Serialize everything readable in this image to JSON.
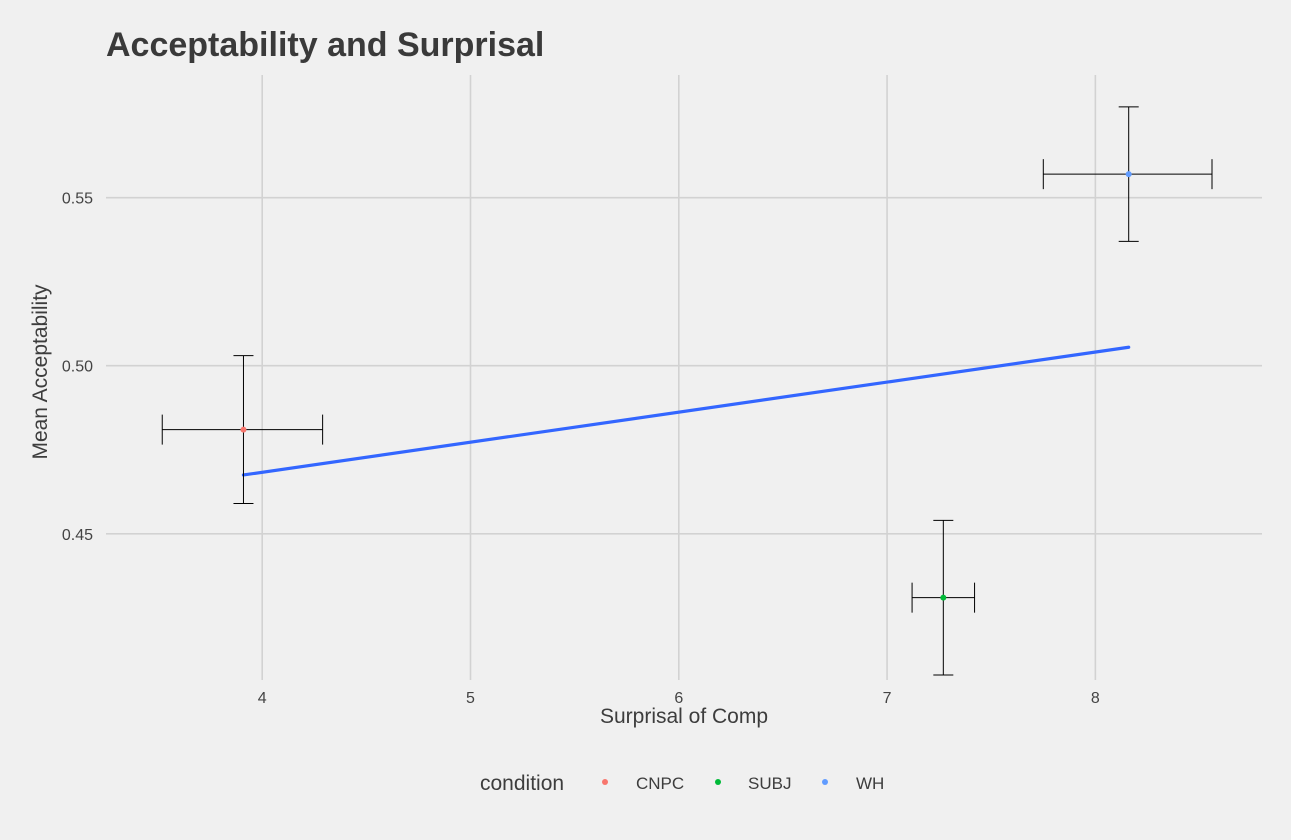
{
  "chart_data": {
    "type": "scatter",
    "title": "Acceptability and Surprisal",
    "xlabel": "Surprisal of Comp",
    "ylabel": "Mean Acceptability",
    "xlim": [
      3.25,
      8.8
    ],
    "ylim": [
      0.4065,
      0.5865
    ],
    "x_ticks": [
      4,
      5,
      6,
      7,
      8
    ],
    "x_tick_labels": [
      "4",
      "5",
      "6",
      "7",
      "8"
    ],
    "y_ticks": [
      0.45,
      0.5,
      0.55
    ],
    "y_tick_labels": [
      "0.45",
      "0.50",
      "0.55"
    ],
    "grid": true,
    "legend": {
      "title": "condition",
      "position": "bottom"
    },
    "series": [
      {
        "name": "CNPC",
        "color": "#f8766d",
        "points": [
          {
            "x": 3.91,
            "y": 0.481,
            "x_err": [
              3.52,
              4.29
            ],
            "y_err": [
              0.459,
              0.503
            ]
          }
        ]
      },
      {
        "name": "SUBJ",
        "color": "#00ba38",
        "points": [
          {
            "x": 7.27,
            "y": 0.431,
            "x_err": [
              7.12,
              7.42
            ],
            "y_err": [
              0.408,
              0.454
            ]
          }
        ]
      },
      {
        "name": "WH",
        "color": "#619cff",
        "points": [
          {
            "x": 8.16,
            "y": 0.557,
            "x_err": [
              7.75,
              8.56
            ],
            "y_err": [
              0.537,
              0.577
            ]
          }
        ]
      }
    ],
    "fit_line": {
      "color": "#3366ff",
      "points": [
        {
          "x": 3.91,
          "y": 0.4675
        },
        {
          "x": 8.16,
          "y": 0.5055
        }
      ]
    }
  }
}
